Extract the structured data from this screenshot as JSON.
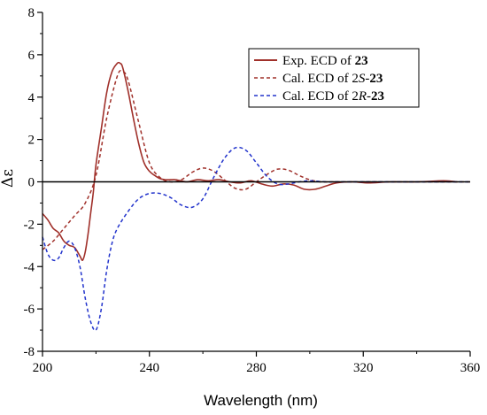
{
  "chart_data": {
    "type": "line",
    "xlabel": "Wavelength (nm)",
    "ylabel": "Δε",
    "xlim": [
      200,
      360
    ],
    "ylim": [
      -8,
      8
    ],
    "xticks": [
      200,
      240,
      280,
      320,
      360
    ],
    "xtick_labels": [
      "200",
      "240",
      "280",
      "320",
      "360"
    ],
    "yticks": [
      -8,
      -6,
      -4,
      -2,
      0,
      2,
      4,
      6,
      8
    ],
    "ytick_labels": [
      "-8",
      "-6",
      "-4",
      "-2",
      "0",
      "2",
      "4",
      "6",
      "8"
    ],
    "grid": false,
    "legend_position": "top-right",
    "series": [
      {
        "name_parts": [
          {
            "text": "Exp. ECD of ",
            "bold": false,
            "italic": false
          },
          {
            "text": "23",
            "bold": true,
            "italic": false
          }
        ],
        "color": "#a0302a",
        "style": "solid",
        "x": [
          200,
          202,
          204,
          206,
          208,
          210,
          212,
          214,
          215,
          216,
          217,
          218,
          219,
          220,
          222,
          224,
          226,
          228,
          229,
          230,
          232,
          234,
          236,
          238,
          240,
          242,
          244,
          246,
          248,
          250,
          254,
          258,
          262,
          266,
          270,
          274,
          278,
          282,
          286,
          290,
          294,
          298,
          302,
          306,
          310,
          316,
          322,
          330,
          340,
          350,
          355
        ],
        "y": [
          -1.5,
          -1.8,
          -2.2,
          -2.4,
          -2.8,
          -3.0,
          -3.1,
          -3.5,
          -3.7,
          -3.3,
          -2.5,
          -1.5,
          -0.5,
          0.8,
          2.5,
          4.2,
          5.2,
          5.6,
          5.6,
          5.4,
          4.3,
          3.0,
          1.8,
          0.9,
          0.5,
          0.3,
          0.15,
          0.1,
          0.1,
          0.1,
          0.0,
          0.1,
          0.05,
          0.1,
          0.0,
          -0.05,
          0.05,
          -0.1,
          -0.2,
          -0.1,
          -0.15,
          -0.35,
          -0.35,
          -0.2,
          -0.05,
          0.0,
          -0.05,
          0.0,
          0.0,
          0.05,
          0.0
        ]
      },
      {
        "name_parts": [
          {
            "text": "Cal. ECD of 2",
            "bold": false,
            "italic": false
          },
          {
            "text": "S",
            "bold": false,
            "italic": true
          },
          {
            "text": "-",
            "bold": false,
            "italic": false
          },
          {
            "text": "23",
            "bold": true,
            "italic": false
          }
        ],
        "color": "#a0302a",
        "style": "dashed",
        "x": [
          200,
          204,
          208,
          212,
          216,
          220,
          224,
          228,
          230,
          232,
          236,
          240,
          244,
          248,
          252,
          256,
          260,
          264,
          268,
          272,
          276,
          280,
          284,
          288,
          292,
          296,
          300,
          304,
          310,
          320,
          330,
          340,
          360
        ],
        "y": [
          -3.2,
          -2.8,
          -2.2,
          -1.6,
          -1.0,
          0.3,
          3.0,
          5.0,
          5.2,
          4.8,
          2.8,
          0.9,
          0.2,
          0.0,
          0.1,
          0.45,
          0.65,
          0.5,
          0.1,
          -0.3,
          -0.35,
          0.0,
          0.35,
          0.6,
          0.55,
          0.3,
          0.1,
          0.0,
          0.0,
          0.0,
          0.0,
          0.0,
          0.0
        ]
      },
      {
        "name_parts": [
          {
            "text": "Cal. ECD of 2",
            "bold": false,
            "italic": false
          },
          {
            "text": "R",
            "bold": false,
            "italic": true
          },
          {
            "text": "-",
            "bold": false,
            "italic": false
          },
          {
            "text": "23",
            "bold": true,
            "italic": false
          }
        ],
        "color": "#2233cc",
        "style": "dashed",
        "x": [
          200,
          202,
          204,
          206,
          208,
          210,
          212,
          214,
          216,
          218,
          220,
          222,
          224,
          226,
          228,
          232,
          236,
          240,
          244,
          248,
          252,
          256,
          260,
          264,
          268,
          272,
          276,
          280,
          284,
          288,
          292,
          296,
          300,
          306,
          312,
          320,
          330,
          340,
          360
        ],
        "y": [
          -2.6,
          -3.4,
          -3.7,
          -3.6,
          -3.1,
          -2.8,
          -3.1,
          -4.0,
          -5.5,
          -6.6,
          -7.0,
          -6.0,
          -4.2,
          -2.9,
          -2.2,
          -1.4,
          -0.8,
          -0.55,
          -0.55,
          -0.75,
          -1.1,
          -1.2,
          -0.8,
          0.2,
          1.1,
          1.6,
          1.5,
          0.9,
          0.25,
          -0.1,
          -0.1,
          0.0,
          0.05,
          0.0,
          0.0,
          0.0,
          0.0,
          0.0,
          0.0
        ]
      }
    ]
  }
}
